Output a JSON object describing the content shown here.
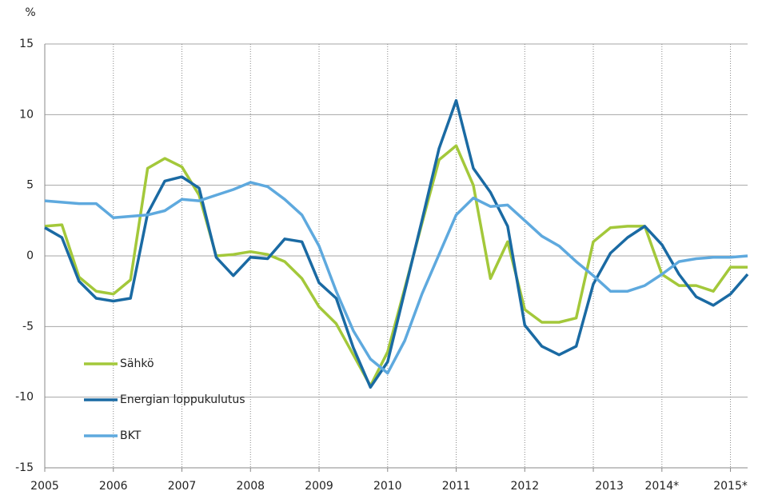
{
  "chart_data": {
    "type": "line",
    "y_label": "%",
    "categories": [
      "2005",
      null,
      null,
      null,
      "2006",
      null,
      null,
      null,
      "2007",
      null,
      null,
      null,
      "2008",
      null,
      null,
      null,
      "2009",
      null,
      null,
      null,
      "2010",
      null,
      null,
      null,
      "2011",
      null,
      null,
      null,
      "2012",
      null,
      null,
      null,
      "2013",
      null,
      null,
      null,
      "2014*",
      null,
      null,
      null,
      "2015*",
      null
    ],
    "series": [
      {
        "name": "Sähkö",
        "color": "#a3c83a",
        "values": [
          2.1,
          2.2,
          -1.5,
          -2.5,
          -2.7,
          -1.7,
          6.2,
          6.9,
          6.3,
          4.3,
          0.0,
          0.1,
          0.3,
          0.1,
          -0.4,
          -1.6,
          -3.6,
          -4.8,
          -7.0,
          -9.2,
          -6.8,
          -2.3,
          2.3,
          6.8,
          7.8,
          5.0,
          -1.6,
          1.0,
          -3.8,
          -4.7,
          -4.7,
          -4.4,
          1.0,
          2.0,
          2.1,
          2.1,
          -1.3,
          -2.1,
          -2.1,
          -2.5,
          -0.8,
          -0.8
        ]
      },
      {
        "name": "Energian loppukulutus",
        "color": "#1a6aa3",
        "values": [
          2.0,
          1.3,
          -1.8,
          -3.0,
          -3.2,
          -3.0,
          3.0,
          5.3,
          5.6,
          4.8,
          -0.1,
          -1.4,
          -0.1,
          -0.2,
          1.2,
          1.0,
          -1.9,
          -3.0,
          -6.5,
          -9.3,
          -7.5,
          -2.5,
          2.5,
          7.6,
          11.0,
          6.2,
          4.5,
          2.1,
          -4.9,
          -6.4,
          -7.0,
          -6.4,
          -2.0,
          0.2,
          1.3,
          2.1,
          0.8,
          -1.3,
          -2.9,
          -3.5,
          -2.7,
          -1.3
        ]
      },
      {
        "name": "BKT",
        "color": "#5ea9de",
        "values": [
          3.9,
          3.8,
          3.7,
          3.7,
          2.7,
          2.8,
          2.9,
          3.2,
          4.0,
          3.9,
          4.3,
          4.7,
          5.2,
          4.9,
          4.0,
          2.9,
          0.7,
          -2.5,
          -5.3,
          -7.3,
          -8.3,
          -6.0,
          -2.7,
          0.1,
          2.9,
          4.1,
          3.5,
          3.6,
          2.5,
          1.4,
          0.7,
          -0.4,
          -1.4,
          -2.5,
          -2.5,
          -2.1,
          -1.3,
          -0.4,
          -0.2,
          -0.1,
          -0.1,
          0.0
        ]
      }
    ],
    "ylim": [
      -15,
      15
    ],
    "yticks": [
      -15,
      -10,
      -5,
      0,
      5,
      10,
      15
    ],
    "grid": true,
    "legend": "lower left"
  }
}
